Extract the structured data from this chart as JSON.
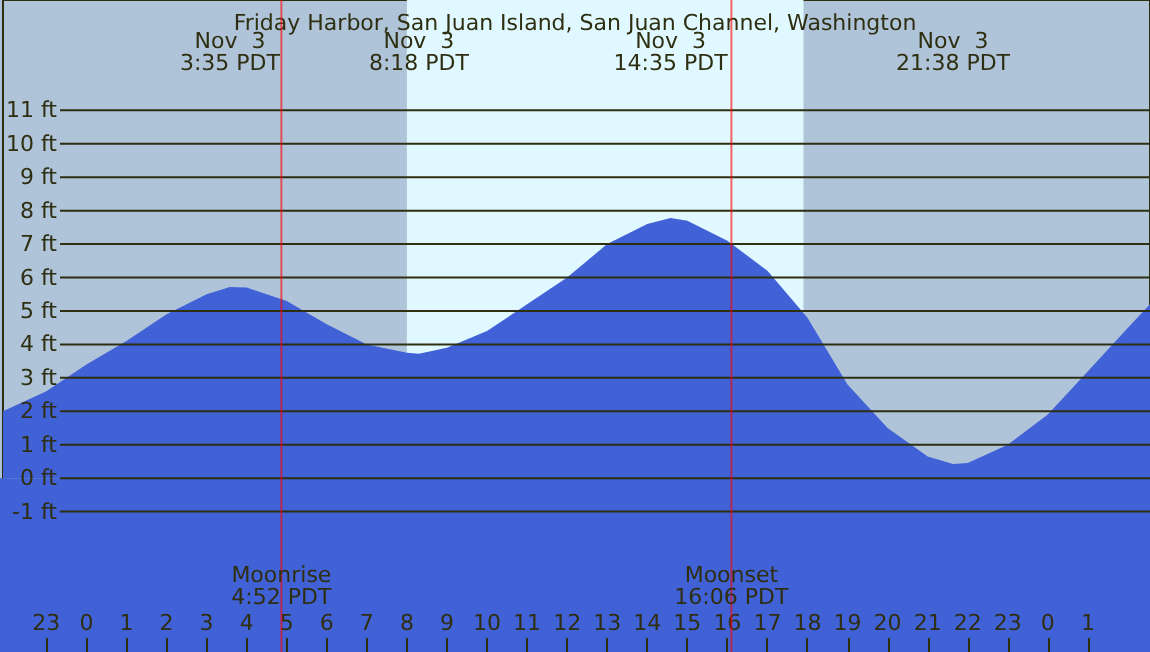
{
  "chart_data": {
    "type": "area",
    "title": "Friday Harbor, San Juan Island, San Juan Channel, Washington",
    "x": [
      "--11-02T21:55",
      "--11-02T23:00",
      "--11-03T00:00",
      "--11-03T01:00",
      "--11-03T02:00",
      "--11-03T03:00",
      "--11-03T03:35",
      "--11-03T04:00",
      "--11-03T05:00",
      "--11-03T06:00",
      "--11-03T07:00",
      "--11-03T08:00",
      "--11-03T08:18",
      "--11-03T09:00",
      "--11-03T10:00",
      "--11-03T11:00",
      "--11-03T12:00",
      "--11-03T13:00",
      "--11-03T14:00",
      "--11-03T14:35",
      "--11-03T15:00",
      "--11-03T16:00",
      "--11-03T17:00",
      "--11-03T18:00",
      "--11-03T19:00",
      "--11-03T20:00",
      "--11-03T21:00",
      "--11-03T21:38",
      "--11-03T22:00",
      "--11-03T23:00",
      "--11-04T00:00",
      "--11-04T01:00",
      "--11-04T02:00",
      "--11-04T02:33"
    ],
    "values": [
      2.0,
      2.6,
      3.4,
      4.1,
      4.9,
      5.5,
      5.72,
      5.7,
      5.3,
      4.6,
      4.0,
      3.75,
      3.72,
      3.9,
      4.4,
      5.2,
      6.0,
      7.0,
      7.6,
      7.78,
      7.7,
      7.1,
      6.2,
      4.8,
      2.8,
      1.5,
      0.65,
      0.42,
      0.45,
      1.0,
      1.9,
      3.2,
      4.5,
      5.2
    ],
    "color": "#4161d6",
    "xlim": [
      "--11-02T21:55",
      "--11-04T02:33"
    ],
    "xticks": [
      {
        "value": "--11-02T23:00",
        "label": "23"
      },
      {
        "value": "--11-03T00:00",
        "label": "0"
      },
      {
        "value": "--11-03T01:00",
        "label": "1"
      },
      {
        "value": "--11-03T02:00",
        "label": "2"
      },
      {
        "value": "--11-03T03:00",
        "label": "3"
      },
      {
        "value": "--11-03T04:00",
        "label": "4"
      },
      {
        "value": "--11-03T05:00",
        "label": "5"
      },
      {
        "value": "--11-03T06:00",
        "label": "6"
      },
      {
        "value": "--11-03T07:00",
        "label": "7"
      },
      {
        "value": "--11-03T08:00",
        "label": "8"
      },
      {
        "value": "--11-03T09:00",
        "label": "9"
      },
      {
        "value": "--11-03T10:00",
        "label": "10"
      },
      {
        "value": "--11-03T11:00",
        "label": "11"
      },
      {
        "value": "--11-03T12:00",
        "label": "12"
      },
      {
        "value": "--11-03T13:00",
        "label": "13"
      },
      {
        "value": "--11-03T14:00",
        "label": "14"
      },
      {
        "value": "--11-03T15:00",
        "label": "15"
      },
      {
        "value": "--11-03T16:00",
        "label": "16"
      },
      {
        "value": "--11-03T17:00",
        "label": "17"
      },
      {
        "value": "--11-03T18:00",
        "label": "18"
      },
      {
        "value": "--11-03T19:00",
        "label": "19"
      },
      {
        "value": "--11-03T20:00",
        "label": "20"
      },
      {
        "value": "--11-03T21:00",
        "label": "21"
      },
      {
        "value": "--11-03T22:00",
        "label": "22"
      },
      {
        "value": "--11-03T23:00",
        "label": "23"
      },
      {
        "value": "--11-04T00:00",
        "label": "0"
      },
      {
        "value": "--11-04T01:00",
        "label": "1"
      }
    ],
    "ylim": [
      -5.2,
      14.3
    ],
    "yticks": [
      {
        "value": -1,
        "label": "-1 ft"
      },
      {
        "value": 0,
        "label": "0 ft"
      },
      {
        "value": 1,
        "label": "1 ft"
      },
      {
        "value": 2,
        "label": "2 ft"
      },
      {
        "value": 3,
        "label": "3 ft"
      },
      {
        "value": 4,
        "label": "4 ft"
      },
      {
        "value": 5,
        "label": "5 ft"
      },
      {
        "value": 6,
        "label": "6 ft"
      },
      {
        "value": 7,
        "label": "7 ft"
      },
      {
        "value": 8,
        "label": "8 ft"
      },
      {
        "value": 9,
        "label": "9 ft"
      },
      {
        "value": 10,
        "label": "10 ft"
      },
      {
        "value": 11,
        "label": "11 ft"
      }
    ],
    "grid": "y",
    "marker": "none",
    "bands": [
      {
        "axis": "x",
        "from": "--11-03T08:00",
        "to": "--11-03T17:54",
        "color": "#e0f8ff"
      }
    ],
    "ref_lines": [
      {
        "axis": "x",
        "value": "--11-03T04:52",
        "label": "Moonrise\n4:52 PDT",
        "color": "#ff0000"
      },
      {
        "axis": "x",
        "value": "--11-03T16:06",
        "label": "Moonset\n16:06 PDT",
        "color": "#ff0000"
      }
    ],
    "annotations": [
      "Nov  3\n3:35 PDT",
      "Nov  3\n8:18 PDT",
      "Nov  3\n14:35 PDT",
      "Nov  3\n21:38 PDT"
    ]
  }
}
